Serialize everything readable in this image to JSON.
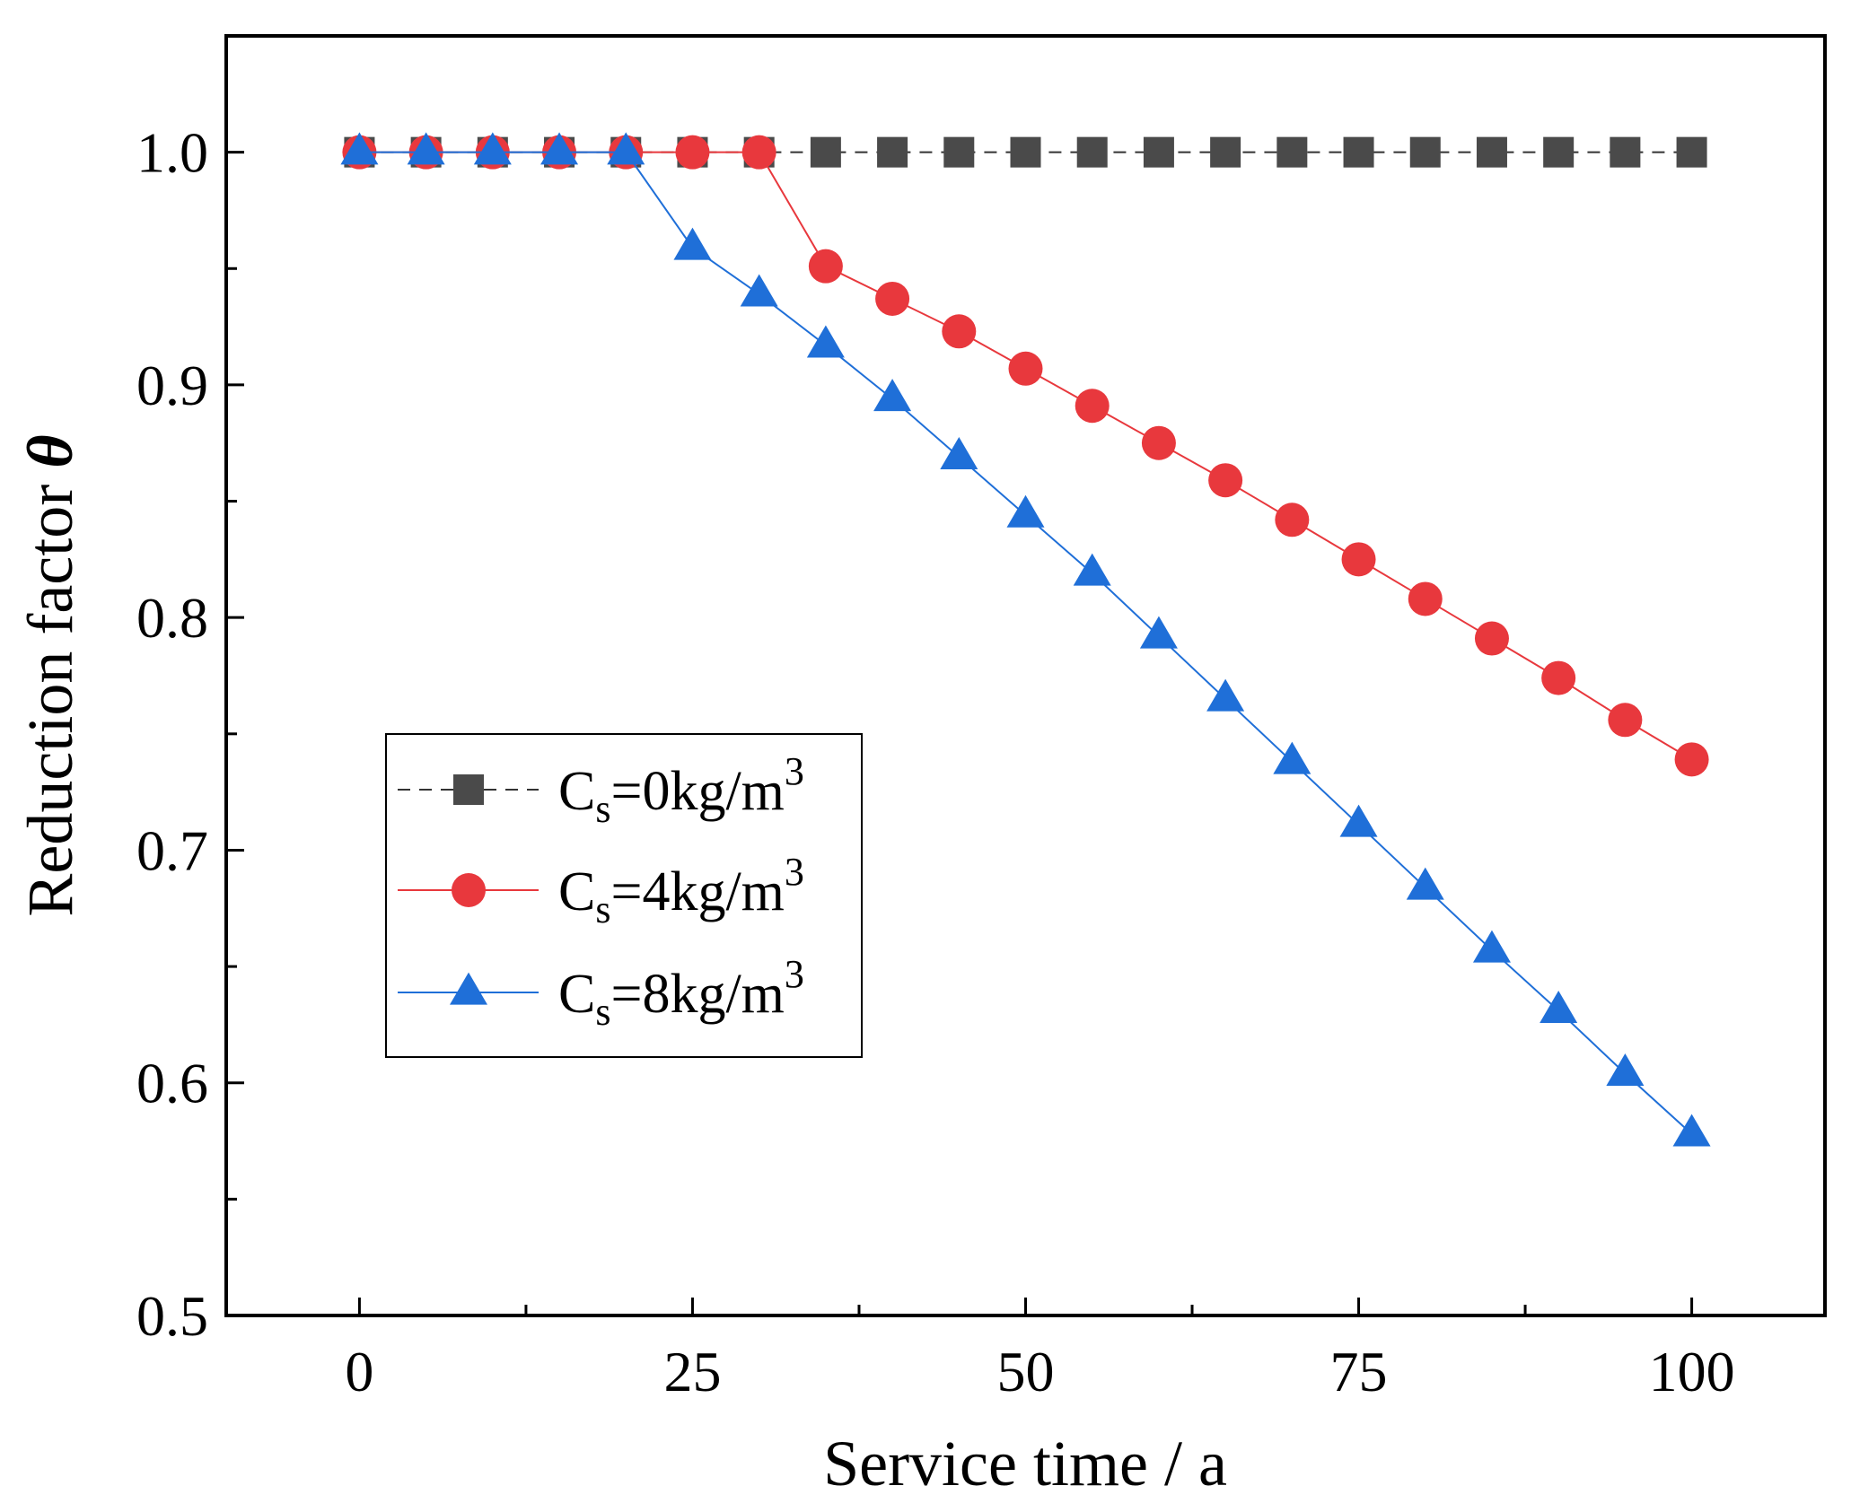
{
  "chart_data": {
    "type": "line",
    "title": "",
    "xlabel": "Service time / a",
    "ylabel_main": "Reduction factor ",
    "ylabel_symbol": "θ",
    "xlim": [
      -10,
      110
    ],
    "ylim": [
      0.5,
      1.05
    ],
    "x_ticks": [
      0,
      25,
      50,
      75,
      100
    ],
    "x_tick_labels": [
      "0",
      "25",
      "50",
      "75",
      "100"
    ],
    "y_ticks": [
      0.5,
      0.6,
      0.7,
      0.8,
      0.9,
      1.0
    ],
    "y_tick_labels": [
      "0.5",
      "0.6",
      "0.7",
      "0.8",
      "0.9",
      "1.0"
    ],
    "grid": false,
    "legend_position": "middle-left",
    "series": [
      {
        "name": "Cs=0kg/m3",
        "legend": {
          "base": "C",
          "sub": "s",
          "mid": "=0kg/m",
          "sup": "3"
        },
        "marker": "square",
        "color": "#4a4a4a",
        "line_color": "#333333",
        "line_style": "dashed",
        "x": [
          0,
          5,
          10,
          15,
          20,
          25,
          30,
          35,
          40,
          45,
          50,
          55,
          60,
          65,
          70,
          75,
          80,
          85,
          90,
          95,
          100
        ],
        "y": [
          1.0,
          1.0,
          1.0,
          1.0,
          1.0,
          1.0,
          1.0,
          1.0,
          1.0,
          1.0,
          1.0,
          1.0,
          1.0,
          1.0,
          1.0,
          1.0,
          1.0,
          1.0,
          1.0,
          1.0,
          1.0
        ]
      },
      {
        "name": "Cs=4kg/m3",
        "legend": {
          "base": "C",
          "sub": "s",
          "mid": "=4kg/m",
          "sup": "3"
        },
        "marker": "circle",
        "color": "#e8383d",
        "line_color": "#e8383d",
        "line_style": "solid",
        "x": [
          0,
          5,
          10,
          15,
          20,
          25,
          30,
          35,
          40,
          45,
          50,
          55,
          60,
          65,
          70,
          75,
          80,
          85,
          90,
          95,
          100
        ],
        "y": [
          1.0,
          1.0,
          1.0,
          1.0,
          1.0,
          1.0,
          1.0,
          0.951,
          0.937,
          0.923,
          0.907,
          0.891,
          0.875,
          0.859,
          0.842,
          0.825,
          0.808,
          0.791,
          0.774,
          0.756,
          0.739
        ]
      },
      {
        "name": "Cs=8kg/m3",
        "legend": {
          "base": "C",
          "sub": "s",
          "mid": "=8kg/m",
          "sup": "3"
        },
        "marker": "triangle",
        "color": "#1f6fd8",
        "line_color": "#1f6fd8",
        "line_style": "solid",
        "x": [
          0,
          5,
          10,
          15,
          20,
          25,
          30,
          35,
          40,
          45,
          50,
          55,
          60,
          65,
          70,
          75,
          80,
          85,
          90,
          95,
          100
        ],
        "y": [
          1.0,
          1.0,
          1.0,
          1.0,
          1.0,
          0.959,
          0.939,
          0.917,
          0.894,
          0.869,
          0.844,
          0.819,
          0.792,
          0.765,
          0.738,
          0.711,
          0.684,
          0.657,
          0.631,
          0.604,
          0.578
        ]
      }
    ]
  }
}
